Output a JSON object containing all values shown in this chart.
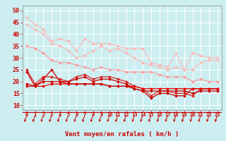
{
  "bg_color": "#cceef0",
  "grid_color": "#ffffff",
  "xlabel": "Vent moyen/en rafales ( km/h )",
  "xlabel_color": "#cc0000",
  "xlabel_fontsize": 6.5,
  "xtick_color": "#cc0000",
  "ytick_color": "#cc0000",
  "ytick_fontsize": 6,
  "xtick_fontsize": 5.0,
  "ylim": [
    8,
    52
  ],
  "xlim": [
    -0.5,
    23.5
  ],
  "yticks": [
    10,
    15,
    20,
    25,
    30,
    35,
    40,
    45,
    50
  ],
  "xticks": [
    0,
    1,
    2,
    3,
    4,
    5,
    6,
    7,
    8,
    9,
    10,
    11,
    12,
    13,
    14,
    15,
    16,
    17,
    18,
    19,
    20,
    21,
    22,
    23
  ],
  "series": [
    {
      "color": "#ffb8b8",
      "linewidth": 0.8,
      "marker": "D",
      "markersize": 2.0,
      "y": [
        47,
        44,
        42,
        37,
        38,
        37,
        33,
        38,
        36,
        36,
        36,
        35,
        34,
        34,
        34,
        28,
        27,
        26,
        32,
        25,
        32,
        31,
        30,
        30
      ]
    },
    {
      "color": "#ffb8b8",
      "linewidth": 0.8,
      "marker": "D",
      "markersize": 2.0,
      "y": [
        44,
        42,
        40,
        36,
        35,
        33,
        30,
        31,
        33,
        35,
        33,
        34,
        32,
        30,
        28,
        27,
        26,
        25,
        26,
        25,
        25,
        28,
        29,
        29
      ]
    },
    {
      "color": "#ff9999",
      "linewidth": 0.8,
      "marker": "D",
      "markersize": 2.0,
      "y": [
        35,
        34,
        32,
        29,
        28,
        28,
        27,
        26,
        25,
        26,
        25,
        25,
        24,
        24,
        24,
        24,
        23,
        22,
        22,
        22,
        20,
        21,
        20,
        20
      ]
    },
    {
      "color": "#dd2222",
      "linewidth": 0.9,
      "marker": "D",
      "markersize": 2.0,
      "y": [
        25,
        19,
        22,
        22,
        21,
        20,
        22,
        23,
        21,
        22,
        22,
        21,
        20,
        18,
        17,
        14,
        16,
        16,
        15,
        15,
        14,
        17,
        17,
        17
      ]
    },
    {
      "color": "#cc0000",
      "linewidth": 0.9,
      "marker": "D",
      "markersize": 2.0,
      "y": [
        24,
        18,
        21,
        25,
        20,
        20,
        21,
        22,
        20,
        21,
        21,
        20,
        19,
        17,
        16,
        13,
        15,
        15,
        14,
        14,
        17,
        17,
        17,
        17
      ]
    },
    {
      "color": "#ee0000",
      "linewidth": 0.9,
      "marker": "D",
      "markersize": 2.0,
      "y": [
        18,
        18,
        18,
        19,
        19,
        19,
        19,
        19,
        19,
        19,
        18,
        18,
        18,
        18,
        17,
        17,
        17,
        17,
        17,
        17,
        17,
        17,
        17,
        17
      ]
    },
    {
      "color": "#cc0000",
      "linewidth": 0.9,
      "marker": "D",
      "markersize": 2.0,
      "y": [
        19,
        18,
        20,
        20,
        20,
        19,
        19,
        19,
        19,
        19,
        18,
        18,
        18,
        17,
        16,
        16,
        16,
        16,
        16,
        16,
        15,
        16,
        16,
        16
      ]
    }
  ]
}
